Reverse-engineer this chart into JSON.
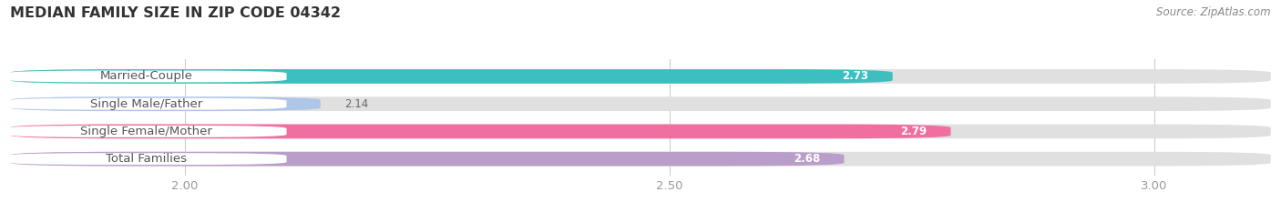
{
  "title": "MEDIAN FAMILY SIZE IN ZIP CODE 04342",
  "source": "Source: ZipAtlas.com",
  "categories": [
    "Married-Couple",
    "Single Male/Father",
    "Single Female/Mother",
    "Total Families"
  ],
  "values": [
    2.73,
    2.14,
    2.79,
    2.68
  ],
  "bar_colors": [
    "#3dbfbf",
    "#aec6e8",
    "#f06fa0",
    "#b89ec8"
  ],
  "bar_bg_color": "#e0e0e0",
  "xlim_min": 1.82,
  "xlim_max": 3.12,
  "xticks": [
    2.0,
    2.5,
    3.0
  ],
  "background_color": "#ffffff",
  "title_fontsize": 11.5,
  "label_fontsize": 9.5,
  "value_fontsize": 8.5,
  "source_fontsize": 8.5,
  "bar_height": 0.52,
  "label_bg_color": "#ffffff",
  "label_text_color": "#555555",
  "value_text_color_inside": "#ffffff",
  "value_text_color_outside": "#666666",
  "tick_color": "#999999",
  "grid_color": "#cccccc"
}
